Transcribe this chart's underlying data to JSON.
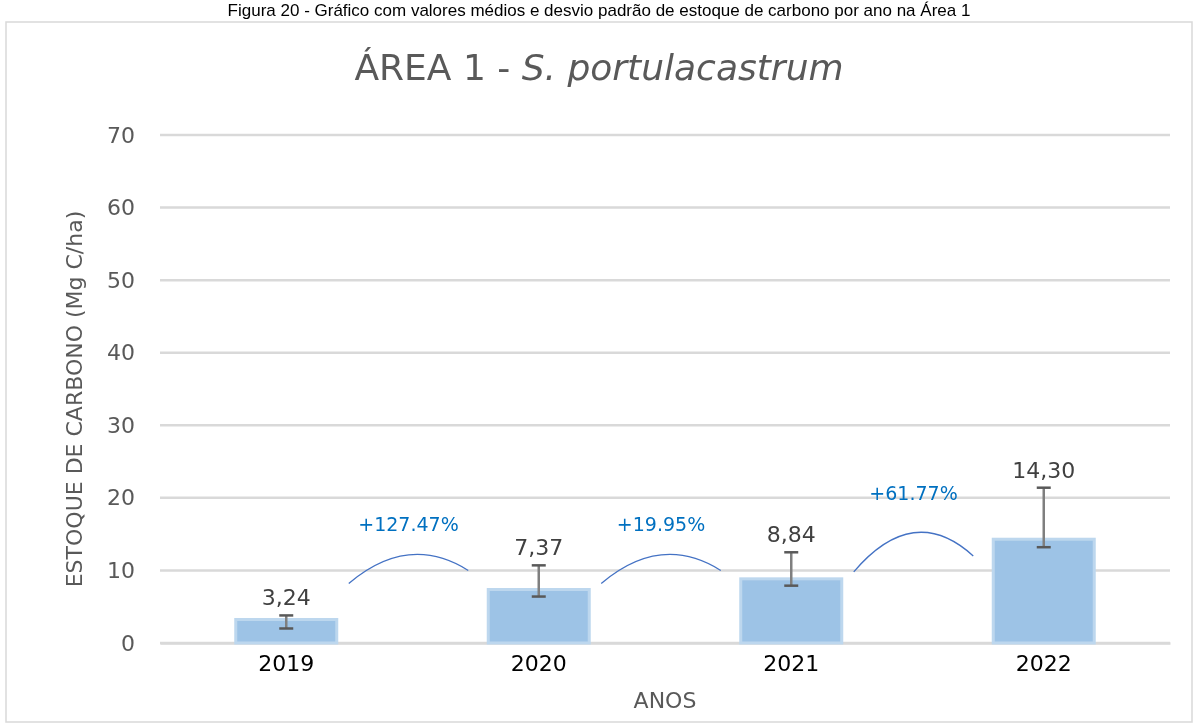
{
  "chart_data": {
    "type": "bar",
    "title": "ÁREA 1 - S. portulacastrum",
    "xlabel": "ANOS",
    "ylabel": "ESTOQUE DE CARBONO (Mg C/ha)",
    "categories": [
      "2019",
      "2020",
      "2021",
      "2022"
    ],
    "values": [
      3.24,
      7.37,
      8.84,
      14.3
    ],
    "value_labels": [
      "3,24",
      "7,37",
      "8,84",
      "14,30"
    ],
    "errors": [
      [
        2.0,
        3.8
      ],
      [
        6.4,
        10.7
      ],
      [
        7.9,
        12.5
      ],
      [
        13.2,
        21.4
      ]
    ],
    "color": "#9dc3e6",
    "ylim": [
      0,
      70
    ],
    "yticks": [
      0,
      10,
      20,
      30,
      40,
      50,
      60,
      70
    ],
    "grid": "y",
    "annotations": [
      "Figura 20 - Gráfico com valores médios e desvio padrão de estoque de carbono por ano na Área 1",
      "+127.47%",
      "+19.95%",
      "+61.77%"
    ]
  }
}
